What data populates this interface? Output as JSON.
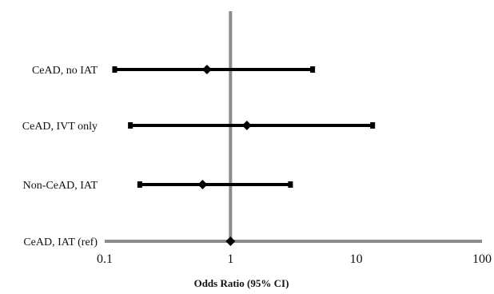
{
  "chart_data": {
    "type": "forest",
    "title": "",
    "xlabel": "Odds  Ratio (95% CI)",
    "ylabel": "",
    "x_scale": "log",
    "xlim": [
      0.1,
      100
    ],
    "x_ticks": [
      0.1,
      1,
      10,
      100
    ],
    "x_tick_labels": [
      "0.1",
      "1",
      "10",
      "100"
    ],
    "reference_line": 1,
    "grid": false,
    "legend": "none",
    "colors": {
      "ci_lines": "#000000",
      "markers": "#000000",
      "axis": "#8c8c8c"
    },
    "rows": [
      {
        "label": "CeAD, no IAT",
        "or": 0.65,
        "ci_low": 0.12,
        "ci_high": 4.5
      },
      {
        "label": "CeAD, IVT only",
        "or": 1.35,
        "ci_low": 0.16,
        "ci_high": 13.5
      },
      {
        "label": "Non-CeAD, IAT",
        "or": 0.6,
        "ci_low": 0.19,
        "ci_high": 3.0
      },
      {
        "label": "CeAD, IAT (ref)",
        "or": 1.0,
        "ci_low": null,
        "ci_high": null
      }
    ]
  }
}
